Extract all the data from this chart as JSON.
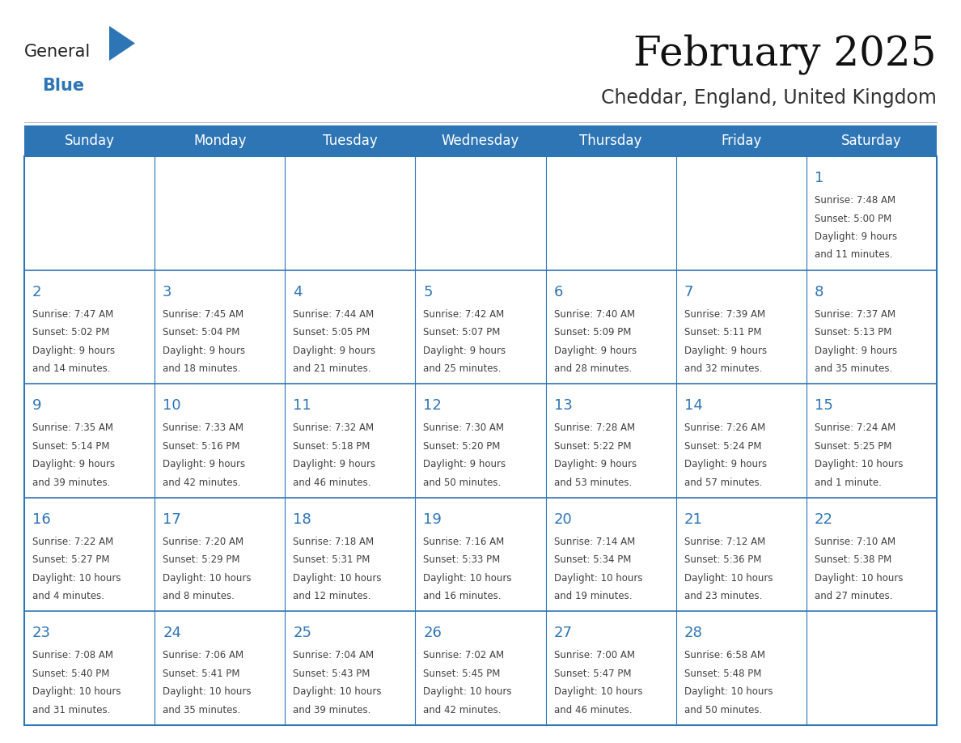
{
  "title": "February 2025",
  "subtitle": "Cheddar, England, United Kingdom",
  "header_bg": "#2e75b6",
  "header_text_color": "#ffffff",
  "cell_border_color": "#2e75b6",
  "day_number_color": "#2e75b6",
  "info_text_color": "#404040",
  "bg_color": "#ffffff",
  "cell_bg": "#ffffff",
  "days_of_week": [
    "Sunday",
    "Monday",
    "Tuesday",
    "Wednesday",
    "Thursday",
    "Friday",
    "Saturday"
  ],
  "weeks": [
    [
      {
        "day": null,
        "info": null
      },
      {
        "day": null,
        "info": null
      },
      {
        "day": null,
        "info": null
      },
      {
        "day": null,
        "info": null
      },
      {
        "day": null,
        "info": null
      },
      {
        "day": null,
        "info": null
      },
      {
        "day": 1,
        "info": "Sunrise: 7:48 AM\nSunset: 5:00 PM\nDaylight: 9 hours\nand 11 minutes."
      }
    ],
    [
      {
        "day": 2,
        "info": "Sunrise: 7:47 AM\nSunset: 5:02 PM\nDaylight: 9 hours\nand 14 minutes."
      },
      {
        "day": 3,
        "info": "Sunrise: 7:45 AM\nSunset: 5:04 PM\nDaylight: 9 hours\nand 18 minutes."
      },
      {
        "day": 4,
        "info": "Sunrise: 7:44 AM\nSunset: 5:05 PM\nDaylight: 9 hours\nand 21 minutes."
      },
      {
        "day": 5,
        "info": "Sunrise: 7:42 AM\nSunset: 5:07 PM\nDaylight: 9 hours\nand 25 minutes."
      },
      {
        "day": 6,
        "info": "Sunrise: 7:40 AM\nSunset: 5:09 PM\nDaylight: 9 hours\nand 28 minutes."
      },
      {
        "day": 7,
        "info": "Sunrise: 7:39 AM\nSunset: 5:11 PM\nDaylight: 9 hours\nand 32 minutes."
      },
      {
        "day": 8,
        "info": "Sunrise: 7:37 AM\nSunset: 5:13 PM\nDaylight: 9 hours\nand 35 minutes."
      }
    ],
    [
      {
        "day": 9,
        "info": "Sunrise: 7:35 AM\nSunset: 5:14 PM\nDaylight: 9 hours\nand 39 minutes."
      },
      {
        "day": 10,
        "info": "Sunrise: 7:33 AM\nSunset: 5:16 PM\nDaylight: 9 hours\nand 42 minutes."
      },
      {
        "day": 11,
        "info": "Sunrise: 7:32 AM\nSunset: 5:18 PM\nDaylight: 9 hours\nand 46 minutes."
      },
      {
        "day": 12,
        "info": "Sunrise: 7:30 AM\nSunset: 5:20 PM\nDaylight: 9 hours\nand 50 minutes."
      },
      {
        "day": 13,
        "info": "Sunrise: 7:28 AM\nSunset: 5:22 PM\nDaylight: 9 hours\nand 53 minutes."
      },
      {
        "day": 14,
        "info": "Sunrise: 7:26 AM\nSunset: 5:24 PM\nDaylight: 9 hours\nand 57 minutes."
      },
      {
        "day": 15,
        "info": "Sunrise: 7:24 AM\nSunset: 5:25 PM\nDaylight: 10 hours\nand 1 minute."
      }
    ],
    [
      {
        "day": 16,
        "info": "Sunrise: 7:22 AM\nSunset: 5:27 PM\nDaylight: 10 hours\nand 4 minutes."
      },
      {
        "day": 17,
        "info": "Sunrise: 7:20 AM\nSunset: 5:29 PM\nDaylight: 10 hours\nand 8 minutes."
      },
      {
        "day": 18,
        "info": "Sunrise: 7:18 AM\nSunset: 5:31 PM\nDaylight: 10 hours\nand 12 minutes."
      },
      {
        "day": 19,
        "info": "Sunrise: 7:16 AM\nSunset: 5:33 PM\nDaylight: 10 hours\nand 16 minutes."
      },
      {
        "day": 20,
        "info": "Sunrise: 7:14 AM\nSunset: 5:34 PM\nDaylight: 10 hours\nand 19 minutes."
      },
      {
        "day": 21,
        "info": "Sunrise: 7:12 AM\nSunset: 5:36 PM\nDaylight: 10 hours\nand 23 minutes."
      },
      {
        "day": 22,
        "info": "Sunrise: 7:10 AM\nSunset: 5:38 PM\nDaylight: 10 hours\nand 27 minutes."
      }
    ],
    [
      {
        "day": 23,
        "info": "Sunrise: 7:08 AM\nSunset: 5:40 PM\nDaylight: 10 hours\nand 31 minutes."
      },
      {
        "day": 24,
        "info": "Sunrise: 7:06 AM\nSunset: 5:41 PM\nDaylight: 10 hours\nand 35 minutes."
      },
      {
        "day": 25,
        "info": "Sunrise: 7:04 AM\nSunset: 5:43 PM\nDaylight: 10 hours\nand 39 minutes."
      },
      {
        "day": 26,
        "info": "Sunrise: 7:02 AM\nSunset: 5:45 PM\nDaylight: 10 hours\nand 42 minutes."
      },
      {
        "day": 27,
        "info": "Sunrise: 7:00 AM\nSunset: 5:47 PM\nDaylight: 10 hours\nand 46 minutes."
      },
      {
        "day": 28,
        "info": "Sunrise: 6:58 AM\nSunset: 5:48 PM\nDaylight: 10 hours\nand 50 minutes."
      },
      {
        "day": null,
        "info": null
      }
    ]
  ],
  "logo_general_color": "#222222",
  "logo_blue_color": "#2e75b6",
  "logo_triangle_color": "#2e75b6",
  "title_fontsize": 36,
  "subtitle_fontsize": 17,
  "header_fontsize": 12,
  "day_num_fontsize": 13,
  "info_fontsize": 8.5
}
